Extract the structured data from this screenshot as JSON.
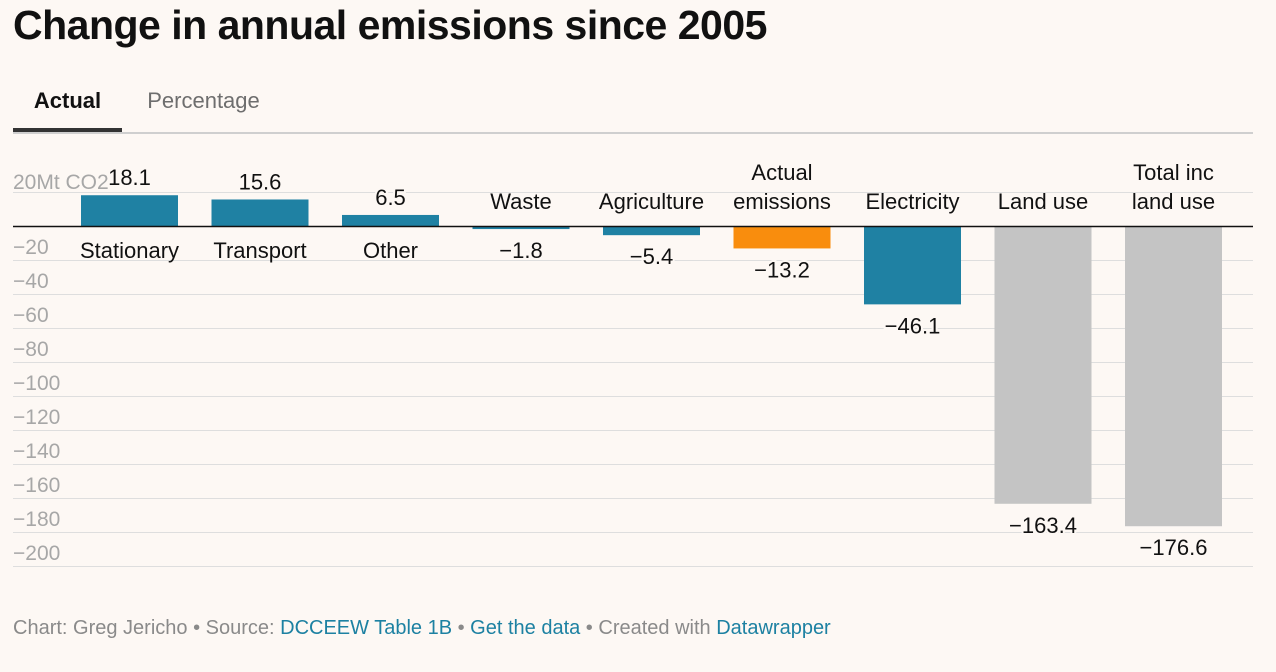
{
  "title": "Change in annual emissions since 2005",
  "tabs": [
    {
      "label": "Actual",
      "active": true
    },
    {
      "label": "Percentage",
      "active": false
    }
  ],
  "footer": {
    "chart_by": "Chart: Greg Jericho",
    "sep1": " • ",
    "source_prefix": "Source: ",
    "source_link": "DCCEEW Table 1B",
    "sep2": " • ",
    "data_link": "Get the data",
    "sep3": " • ",
    "created_prefix": "Created with ",
    "created_link": "Datawrapper"
  },
  "colors": {
    "teal": "#1f81a3",
    "orange": "#f98d0d",
    "grey": "#c4c4c4",
    "axis": "#a7a7a7",
    "grid": "#dedede"
  },
  "chart_data": {
    "type": "bar",
    "title": "Change in annual emissions since 2005",
    "unit_label": "Mt CO2",
    "ylim": [
      -210,
      20
    ],
    "yticks": [
      20,
      -20,
      -40,
      -60,
      -80,
      -100,
      -120,
      -140,
      -160,
      -180,
      -200
    ],
    "ytick_labels": [
      "20Mt CO2",
      "−20",
      "−40",
      "−60",
      "−80",
      "−100",
      "−120",
      "−140",
      "−160",
      "−180",
      "−200"
    ],
    "categories": [
      [
        "Stationary"
      ],
      [
        "Transport"
      ],
      [
        "Other"
      ],
      [
        "Waste"
      ],
      [
        "Agriculture"
      ],
      [
        "Actual",
        "emissions"
      ],
      [
        "Electricity"
      ],
      [
        "Land use"
      ],
      [
        "Total inc",
        "land use"
      ]
    ],
    "values": [
      18.1,
      15.6,
      6.5,
      -1.8,
      -5.4,
      -13.2,
      -46.1,
      -163.4,
      -176.6
    ],
    "value_labels": [
      "18.1",
      "15.6",
      "6.5",
      "−1.8",
      "−5.4",
      "−13.2",
      "−46.1",
      "−163.4",
      "−176.6"
    ],
    "bar_colors": [
      "#1f81a3",
      "#1f81a3",
      "#1f81a3",
      "#1f81a3",
      "#1f81a3",
      "#f98d0d",
      "#1f81a3",
      "#c4c4c4",
      "#c4c4c4"
    ]
  }
}
